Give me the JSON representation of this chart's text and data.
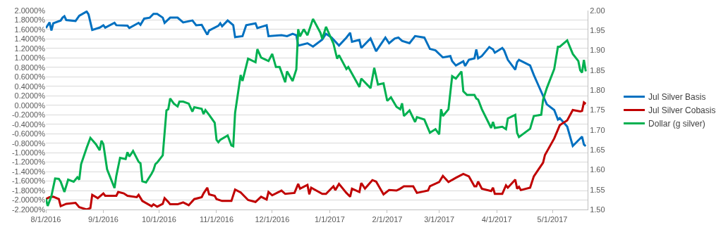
{
  "chart_data": {
    "type": "line",
    "xlim": [
      "2016-08-01",
      "2017-05-20"
    ],
    "xticks": [
      {
        "value": "2016-08-01",
        "label": "8/1/2016"
      },
      {
        "value": "2016-09-01",
        "label": "9/1/2016"
      },
      {
        "value": "2016-10-01",
        "label": "10/1/2016"
      },
      {
        "value": "2016-11-01",
        "label": "11/1/2016"
      },
      {
        "value": "2016-12-01",
        "label": "12/1/2016"
      },
      {
        "value": "2017-01-01",
        "label": "1/1/2017"
      },
      {
        "value": "2017-02-01",
        "label": "2/1/2017"
      },
      {
        "value": "2017-03-01",
        "label": "3/1/2017"
      },
      {
        "value": "2017-04-01",
        "label": "4/1/2017"
      },
      {
        "value": "2017-05-01",
        "label": "5/1/2017"
      }
    ],
    "ylim": [
      -2.2,
      2.0
    ],
    "yticks": [
      {
        "value": -2.2,
        "label": "-2.2000%"
      },
      {
        "value": -2.0,
        "label": "-2.0000%"
      },
      {
        "value": -1.8,
        "label": "-1.8000%"
      },
      {
        "value": -1.6,
        "label": "-1.6000%"
      },
      {
        "value": -1.4,
        "label": "-1.4000%"
      },
      {
        "value": -1.2,
        "label": "-1.2000%"
      },
      {
        "value": -1.0,
        "label": "-1.0000%"
      },
      {
        "value": -0.8,
        "label": "-0.8000%"
      },
      {
        "value": -0.6,
        "label": "-0.6000%"
      },
      {
        "value": -0.4,
        "label": "-0.4000%"
      },
      {
        "value": -0.2,
        "label": "-0.2000%"
      },
      {
        "value": 0,
        "label": "0.0000%"
      },
      {
        "value": 0.2,
        "label": "0.2000%"
      },
      {
        "value": 0.4,
        "label": "0.4000%"
      },
      {
        "value": 0.6,
        "label": "0.6000%"
      },
      {
        "value": 0.8,
        "label": "0.8000%"
      },
      {
        "value": 1.0,
        "label": "1.0000%"
      },
      {
        "value": 1.2,
        "label": "1.2000%"
      },
      {
        "value": 1.4,
        "label": "1.4000%"
      },
      {
        "value": 1.6,
        "label": "1.6000%"
      },
      {
        "value": 1.8,
        "label": "1.8000%"
      },
      {
        "value": 2.0,
        "label": "2.0000%"
      }
    ],
    "y2lim": [
      1.5,
      2.0
    ],
    "y2ticks": [
      {
        "value": 1.5,
        "label": "1.50"
      },
      {
        "value": 1.55,
        "label": "1.55"
      },
      {
        "value": 1.6,
        "label": "1.60"
      },
      {
        "value": 1.65,
        "label": "1.65"
      },
      {
        "value": 1.7,
        "label": "1.70"
      },
      {
        "value": 1.75,
        "label": "1.75"
      },
      {
        "value": 1.8,
        "label": "1.80"
      },
      {
        "value": 1.85,
        "label": "1.85"
      },
      {
        "value": 1.9,
        "label": "1.90"
      },
      {
        "value": 1.95,
        "label": "1.95"
      },
      {
        "value": 2.0,
        "label": "2.00"
      }
    ],
    "grid": "y",
    "legend": "right",
    "line_style": "solid",
    "series": [
      {
        "name": "Jul Silver Basis",
        "color": "#0070c0",
        "x": [
          "2016-08-01",
          "2016-08-03",
          "2016-08-04",
          "2016-08-05",
          "2016-08-09",
          "2016-08-10",
          "2016-08-11",
          "2016-08-12",
          "2016-08-17",
          "2016-08-19",
          "2016-08-23",
          "2016-08-24",
          "2016-08-26",
          "2016-08-30",
          "2016-09-01",
          "2016-09-02",
          "2016-09-07",
          "2016-09-08",
          "2016-09-14",
          "2016-09-15",
          "2016-09-20",
          "2016-09-21",
          "2016-09-23",
          "2016-09-26",
          "2016-09-28",
          "2016-09-30",
          "2016-10-03",
          "2016-10-04",
          "2016-10-07",
          "2016-10-11",
          "2016-10-14",
          "2016-10-19",
          "2016-10-21",
          "2016-10-24",
          "2016-10-25",
          "2016-10-27",
          "2016-10-28",
          "2016-11-02",
          "2016-11-03",
          "2016-11-04",
          "2016-11-07",
          "2016-11-10",
          "2016-11-11",
          "2016-11-15",
          "2016-11-17",
          "2016-11-22",
          "2016-11-23",
          "2016-11-28",
          "2016-11-29",
          "2016-12-06",
          "2016-12-09",
          "2016-12-12",
          "2016-12-14",
          "2016-12-15",
          "2016-12-20",
          "2016-12-23",
          "2016-12-28",
          "2016-12-30",
          "2017-01-02",
          "2017-01-06",
          "2017-01-10",
          "2017-01-12",
          "2017-01-13",
          "2017-01-17",
          "2017-01-18",
          "2017-01-23",
          "2017-01-26",
          "2017-01-31",
          "2017-02-02",
          "2017-02-05",
          "2017-02-07",
          "2017-02-09",
          "2017-02-13",
          "2017-02-16",
          "2017-02-21",
          "2017-02-24",
          "2017-02-27",
          "2017-03-03",
          "2017-03-07",
          "2017-03-08",
          "2017-03-10",
          "2017-03-14",
          "2017-03-15",
          "2017-03-17",
          "2017-03-20",
          "2017-03-21",
          "2017-03-22",
          "2017-03-24",
          "2017-03-28",
          "2017-03-30",
          "2017-03-31",
          "2017-04-04",
          "2017-04-05",
          "2017-04-07",
          "2017-04-11",
          "2017-04-12",
          "2017-04-13",
          "2017-04-19",
          "2017-04-21",
          "2017-04-28",
          "2017-05-02",
          "2017-05-04",
          "2017-05-05",
          "2017-05-09",
          "2017-05-12",
          "2017-05-17",
          "2017-05-18",
          "2017-05-19"
        ],
        "values": [
          1.63,
          1.75,
          1.58,
          1.73,
          1.79,
          1.85,
          1.88,
          1.8,
          1.78,
          1.89,
          1.98,
          1.92,
          1.59,
          1.64,
          1.69,
          1.64,
          1.74,
          1.69,
          1.68,
          1.63,
          1.74,
          1.7,
          1.83,
          1.85,
          1.93,
          1.93,
          1.85,
          1.74,
          1.85,
          1.85,
          1.75,
          1.79,
          1.69,
          1.7,
          1.63,
          1.49,
          1.58,
          1.68,
          1.73,
          1.67,
          1.79,
          1.69,
          1.44,
          1.46,
          1.69,
          1.73,
          1.63,
          1.69,
          1.46,
          1.48,
          1.46,
          1.51,
          1.48,
          1.26,
          1.31,
          1.24,
          1.39,
          1.51,
          1.43,
          1.26,
          1.43,
          1.53,
          1.34,
          1.38,
          1.21,
          1.41,
          1.14,
          1.43,
          1.31,
          1.41,
          1.43,
          1.36,
          1.31,
          1.46,
          1.43,
          1.19,
          1.16,
          1.01,
          1.04,
          0.93,
          0.84,
          0.93,
          0.83,
          0.96,
          0.99,
          1.18,
          0.99,
          1.04,
          1.23,
          1.18,
          1.11,
          1.21,
          1.16,
          0.96,
          0.75,
          0.91,
          0.96,
          0.84,
          0.64,
          0.02,
          -0.1,
          -0.3,
          -0.27,
          -0.45,
          -0.86,
          -0.66,
          -0.83,
          -0.86
        ]
      },
      {
        "name": "Jul Silver Cobasis",
        "color": "#c00000",
        "x": [
          "2016-08-01",
          "2016-08-03",
          "2016-08-05",
          "2016-08-08",
          "2016-08-09",
          "2016-08-12",
          "2016-08-17",
          "2016-08-19",
          "2016-08-23",
          "2016-08-25",
          "2016-08-26",
          "2016-08-29",
          "2016-09-01",
          "2016-09-02",
          "2016-09-08",
          "2016-09-09",
          "2016-09-12",
          "2016-09-14",
          "2016-09-19",
          "2016-09-20",
          "2016-09-22",
          "2016-09-27",
          "2016-09-28",
          "2016-09-30",
          "2016-10-03",
          "2016-10-04",
          "2016-10-06",
          "2016-10-07",
          "2016-10-11",
          "2016-10-14",
          "2016-10-17",
          "2016-10-20",
          "2016-10-24",
          "2016-10-25",
          "2016-10-27",
          "2016-10-28",
          "2016-10-31",
          "2016-11-01",
          "2016-11-04",
          "2016-11-09",
          "2016-11-11",
          "2016-11-14",
          "2016-11-18",
          "2016-11-22",
          "2016-11-25",
          "2016-11-28",
          "2016-11-29",
          "2016-12-01",
          "2016-12-06",
          "2016-12-08",
          "2016-12-13",
          "2016-12-15",
          "2016-12-16",
          "2016-12-20",
          "2016-12-21",
          "2016-12-22",
          "2016-12-28",
          "2016-12-30",
          "2017-01-03",
          "2017-01-04",
          "2017-01-06",
          "2017-01-10",
          "2017-01-12",
          "2017-01-13",
          "2017-01-17",
          "2017-01-18",
          "2017-01-20",
          "2017-01-24",
          "2017-01-26",
          "2017-01-30",
          "2017-02-02",
          "2017-02-06",
          "2017-02-08",
          "2017-02-10",
          "2017-02-15",
          "2017-02-17",
          "2017-02-23",
          "2017-02-24",
          "2017-03-01",
          "2017-03-03",
          "2017-03-06",
          "2017-03-10",
          "2017-03-14",
          "2017-03-17",
          "2017-03-20",
          "2017-03-21",
          "2017-03-22",
          "2017-03-24",
          "2017-03-29",
          "2017-03-30",
          "2017-03-31",
          "2017-04-04",
          "2017-04-06",
          "2017-04-07",
          "2017-04-11",
          "2017-04-12",
          "2017-04-13",
          "2017-04-14",
          "2017-04-19",
          "2017-04-21",
          "2017-04-26",
          "2017-04-27",
          "2017-05-02",
          "2017-05-05",
          "2017-05-09",
          "2017-05-12",
          "2017-05-16",
          "2017-05-17",
          "2017-05-18",
          "2017-05-19"
        ],
        "values": [
          -1.98,
          -1.94,
          -1.93,
          -1.98,
          -2.13,
          -2.08,
          -2.06,
          -2.15,
          -2.2,
          -2.17,
          -1.89,
          -1.96,
          -1.86,
          -1.91,
          -1.91,
          -1.83,
          -1.86,
          -1.91,
          -1.94,
          -1.89,
          -2.02,
          -2.13,
          -2.09,
          -2.14,
          -2.08,
          -1.96,
          -2.04,
          -2.09,
          -2.09,
          -2.05,
          -2.11,
          -1.98,
          -1.94,
          -1.86,
          -1.74,
          -1.88,
          -1.91,
          -1.98,
          -2.02,
          -2.02,
          -1.78,
          -1.84,
          -2.0,
          -2.04,
          -1.93,
          -1.99,
          -1.83,
          -1.9,
          -1.8,
          -1.87,
          -1.85,
          -1.66,
          -1.76,
          -1.68,
          -1.88,
          -1.74,
          -1.87,
          -1.87,
          -1.71,
          -1.79,
          -1.66,
          -1.85,
          -1.93,
          -1.76,
          -1.83,
          -1.64,
          -1.76,
          -1.58,
          -1.61,
          -1.88,
          -1.79,
          -1.8,
          -1.76,
          -1.71,
          -1.71,
          -1.85,
          -1.8,
          -1.71,
          -1.62,
          -1.49,
          -1.62,
          -1.53,
          -1.45,
          -1.5,
          -1.71,
          -1.71,
          -1.61,
          -1.76,
          -1.81,
          -1.74,
          -1.87,
          -1.87,
          -1.69,
          -1.74,
          -1.57,
          -1.76,
          -1.72,
          -1.79,
          -1.74,
          -1.5,
          -1.21,
          -1.05,
          -0.7,
          -0.42,
          -0.32,
          -0.1,
          -0.13,
          -0.12,
          0.06,
          0.03
        ]
      },
      {
        "name": "Dollar (g silver)",
        "color": "#00b050",
        "axis": "y2",
        "x": [
          "2016-08-01",
          "2016-08-02",
          "2016-08-04",
          "2016-08-06",
          "2016-08-08",
          "2016-08-09",
          "2016-08-11",
          "2016-08-13",
          "2016-08-16",
          "2016-08-18",
          "2016-08-19",
          "2016-08-20",
          "2016-08-23",
          "2016-08-25",
          "2016-08-28",
          "2016-08-30",
          "2016-08-31",
          "2016-09-01",
          "2016-09-03",
          "2016-09-07",
          "2016-09-08",
          "2016-09-10",
          "2016-09-13",
          "2016-09-14",
          "2016-09-15",
          "2016-09-17",
          "2016-09-20",
          "2016-09-21",
          "2016-09-22",
          "2016-09-24",
          "2016-09-27",
          "2016-09-28",
          "2016-09-29",
          "2016-09-30",
          "2016-10-03",
          "2016-10-05",
          "2016-10-06",
          "2016-10-07",
          "2016-10-09",
          "2016-10-11",
          "2016-10-12",
          "2016-10-14",
          "2016-10-17",
          "2016-10-19",
          "2016-10-20",
          "2016-10-24",
          "2016-10-25",
          "2016-10-26",
          "2016-10-28",
          "2016-10-31",
          "2016-11-01",
          "2016-11-02",
          "2016-11-03",
          "2016-11-07",
          "2016-11-09",
          "2016-11-10",
          "2016-11-11",
          "2016-11-14",
          "2016-11-15",
          "2016-11-18",
          "2016-11-22",
          "2016-11-23",
          "2016-11-25",
          "2016-11-29",
          "2016-12-01",
          "2016-12-03",
          "2016-12-05",
          "2016-12-08",
          "2016-12-09",
          "2016-12-12",
          "2016-12-14",
          "2016-12-15",
          "2016-12-16",
          "2016-12-18",
          "2016-12-20",
          "2016-12-23",
          "2016-12-27",
          "2016-12-28",
          "2016-12-30",
          "2017-01-03",
          "2017-01-05",
          "2017-01-06",
          "2017-01-10",
          "2017-01-11",
          "2017-01-17",
          "2017-01-18",
          "2017-01-23",
          "2017-01-25",
          "2017-01-27",
          "2017-01-30",
          "2017-02-01",
          "2017-02-03",
          "2017-02-06",
          "2017-02-08",
          "2017-02-09",
          "2017-02-10",
          "2017-02-13",
          "2017-02-16",
          "2017-02-17",
          "2017-02-21",
          "2017-02-24",
          "2017-02-27",
          "2017-03-01",
          "2017-03-02",
          "2017-03-03",
          "2017-03-06",
          "2017-03-08",
          "2017-03-10",
          "2017-03-13",
          "2017-03-14",
          "2017-03-16",
          "2017-03-20",
          "2017-03-21",
          "2017-03-22",
          "2017-03-24",
          "2017-03-29",
          "2017-03-30",
          "2017-03-31",
          "2017-04-04",
          "2017-04-06",
          "2017-04-07",
          "2017-04-11",
          "2017-04-12",
          "2017-04-13",
          "2017-04-19",
          "2017-04-21",
          "2017-04-25",
          "2017-04-26",
          "2017-04-28",
          "2017-05-02",
          "2017-05-04",
          "2017-05-05",
          "2017-05-09",
          "2017-05-12",
          "2017-05-15",
          "2017-05-16",
          "2017-05-17",
          "2017-05-18",
          "2017-05-19"
        ],
        "values": [
          1.527,
          1.509,
          1.534,
          1.578,
          1.577,
          1.57,
          1.544,
          1.575,
          1.57,
          1.581,
          1.575,
          1.614,
          1.655,
          1.68,
          1.664,
          1.649,
          1.673,
          1.664,
          1.601,
          1.554,
          1.585,
          1.63,
          1.627,
          1.644,
          1.633,
          1.647,
          1.62,
          1.616,
          1.571,
          1.568,
          1.59,
          1.599,
          1.614,
          1.618,
          1.636,
          1.749,
          1.752,
          1.779,
          1.766,
          1.759,
          1.771,
          1.771,
          1.766,
          1.746,
          1.757,
          1.753,
          1.74,
          1.75,
          1.738,
          1.718,
          1.675,
          1.669,
          1.675,
          1.686,
          1.661,
          1.659,
          1.743,
          1.838,
          1.823,
          1.879,
          1.87,
          1.903,
          1.882,
          1.873,
          1.891,
          1.858,
          1.858,
          1.82,
          1.847,
          1.823,
          1.852,
          1.953,
          1.935,
          1.953,
          1.938,
          1.979,
          1.944,
          1.929,
          1.959,
          1.917,
          1.879,
          1.888,
          1.853,
          1.858,
          1.808,
          1.829,
          1.805,
          1.856,
          1.814,
          1.817,
          1.773,
          1.782,
          1.758,
          1.752,
          1.767,
          1.735,
          1.749,
          1.72,
          1.732,
          1.726,
          1.693,
          1.702,
          1.689,
          1.752,
          1.735,
          1.752,
          1.835,
          1.829,
          1.847,
          1.797,
          1.788,
          1.788,
          1.779,
          1.776,
          1.752,
          1.705,
          1.72,
          1.705,
          1.708,
          1.702,
          1.729,
          1.738,
          1.693,
          1.682,
          1.703,
          1.735,
          1.738,
          1.776,
          1.805,
          1.853,
          1.909,
          1.909,
          1.925,
          1.891,
          1.873,
          1.85,
          1.844,
          1.876,
          1.847
        ]
      }
    ]
  }
}
